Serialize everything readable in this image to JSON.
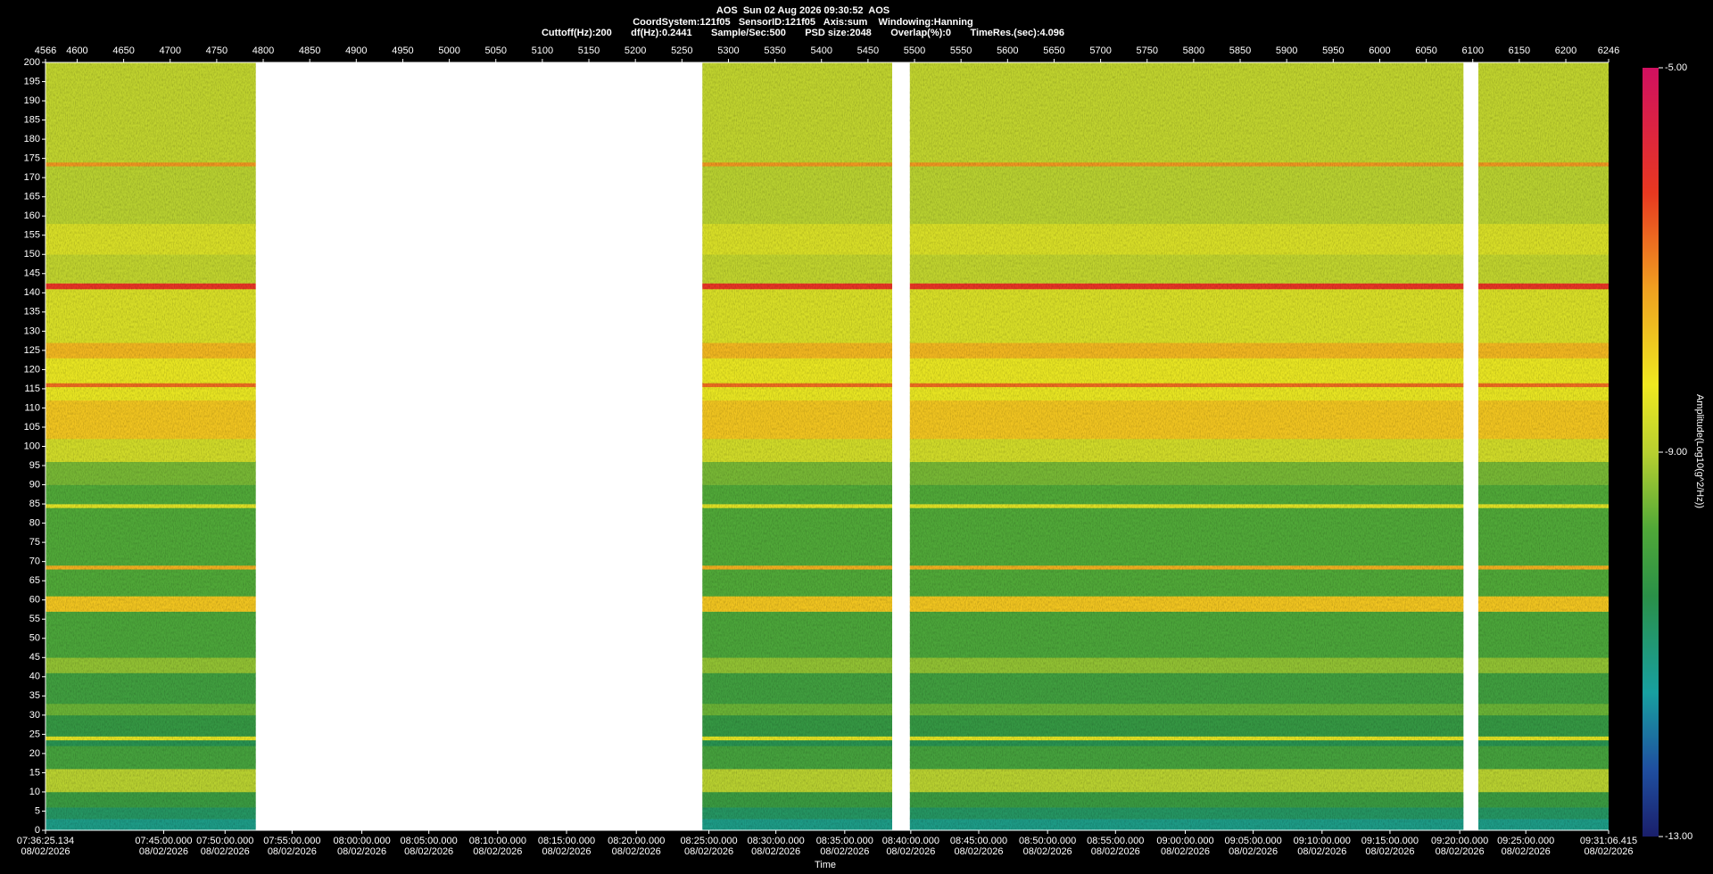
{
  "chart_data": {
    "type": "spectrogram",
    "title_lines": [
      "AOS  Sun 02 Aug 2026 09:30:52  AOS",
      "CoordSystem:121f05   SensorID:121f05   Axis:sum    Windowing:Hanning",
      "Cuttoff(Hz):200       df(Hz):0.2441       Sample/Sec:500       PSD size:2048       Overlap(%):0       TimeRes.(sec):4.096"
    ],
    "xlabel": "Time",
    "xlim": [
      4566,
      6246
    ],
    "xticks": [
      4566,
      4600,
      4650,
      4700,
      4750,
      4800,
      4850,
      4900,
      4950,
      5000,
      5050,
      5100,
      5150,
      5200,
      5250,
      5300,
      5350,
      5400,
      5450,
      5500,
      5550,
      5600,
      5650,
      5700,
      5750,
      5800,
      5850,
      5900,
      5950,
      6000,
      6050,
      6100,
      6150,
      6200,
      6246
    ],
    "time_ticks": [
      {
        "value": 4566,
        "label": "07:36:25.134"
      },
      {
        "value": 4693,
        "label": "07:45:00.000"
      },
      {
        "value": 4759,
        "label": "07:50:00.000"
      },
      {
        "value": 4831,
        "label": "07:55:00.000"
      },
      {
        "value": 4906,
        "label": "08:00:00.000"
      },
      {
        "value": 4978,
        "label": "08:05:00.000"
      },
      {
        "value": 5052,
        "label": "08:10:00.000"
      },
      {
        "value": 5126,
        "label": "08:15:00.000"
      },
      {
        "value": 5201,
        "label": "08:20:00.000"
      },
      {
        "value": 5279,
        "label": "08:25:00.000"
      },
      {
        "value": 5351,
        "label": "08:30:00.000"
      },
      {
        "value": 5425,
        "label": "08:35:00.000"
      },
      {
        "value": 5496,
        "label": "08:40:00.000"
      },
      {
        "value": 5569,
        "label": "08:45:00.000"
      },
      {
        "value": 5643,
        "label": "08:50:00.000"
      },
      {
        "value": 5716,
        "label": "08:55:00.000"
      },
      {
        "value": 5791,
        "label": "09:00:00.000"
      },
      {
        "value": 5864,
        "label": "09:05:00.000"
      },
      {
        "value": 5938,
        "label": "09:10:00.000"
      },
      {
        "value": 6011,
        "label": "09:15:00.000"
      },
      {
        "value": 6086,
        "label": "09:20:00.000"
      },
      {
        "value": 6157,
        "label": "09:25:00.000"
      },
      {
        "value": 6246,
        "label": "09:31:06.415"
      }
    ],
    "time_tick_dates": [
      "08/02/2026",
      "08/02/2026",
      "08/02/2026",
      "08/02/2026",
      "08/02/2026",
      "08/02/2026",
      "08/02/2026",
      "08/02/2026",
      "08/02/2026",
      "08/02/2026",
      "08/02/2026",
      "08/02/2026",
      "08/02/2026",
      "08/02/2026",
      "08/02/2026",
      "08/02/2026",
      "08/02/2026",
      "08/02/2026",
      "08/02/2026",
      "08/02/2026",
      "08/02/2026",
      "08/02/2026",
      "08/02/2026"
    ],
    "ylim": [
      0,
      200
    ],
    "yticks": [
      0,
      5,
      10,
      15,
      20,
      25,
      30,
      35,
      40,
      45,
      50,
      55,
      60,
      65,
      70,
      75,
      80,
      85,
      90,
      95,
      100,
      105,
      110,
      115,
      120,
      125,
      130,
      135,
      140,
      145,
      150,
      155,
      160,
      165,
      170,
      175,
      180,
      185,
      190,
      195,
      200
    ],
    "segments": [
      [
        4566,
        4792
      ],
      [
        5272,
        5476
      ],
      [
        5495,
        6090
      ],
      [
        6106,
        6246
      ]
    ],
    "band_edges": [
      0,
      3,
      6,
      10,
      16,
      22,
      23.5,
      24.5,
      30,
      33,
      41,
      45,
      57,
      61,
      68,
      69,
      84,
      85,
      90,
      96,
      102,
      112,
      115.5,
      116.5,
      123,
      127,
      141,
      142.5,
      150,
      158,
      173,
      174,
      200
    ],
    "band_amplitudes": [
      -11.2,
      -10.8,
      -10.2,
      -9.0,
      -10.0,
      -10.6,
      -8.5,
      -10.3,
      -9.6,
      -10.1,
      -9.3,
      -9.9,
      -7.8,
      -9.8,
      -7.5,
      -9.8,
      -8.5,
      -9.8,
      -9.5,
      -8.7,
      -7.8,
      -8.4,
      -6.8,
      -8.4,
      -7.6,
      -8.6,
      -6.2,
      -8.9,
      -8.6,
      -9.0,
      -7.2,
      -8.9
    ],
    "colorbar": {
      "label": "Amplitude(Log10(g^2/Hz))",
      "lim": [
        -13,
        -5
      ],
      "ticks": [
        {
          "value": -5,
          "label": "-5.00"
        },
        {
          "value": -9,
          "label": "-9.00"
        },
        {
          "value": -13,
          "label": "-13.00"
        }
      ],
      "colormap": [
        [
          -13,
          "#1a1f6b"
        ],
        [
          -12.3,
          "#1f4fa0"
        ],
        [
          -11.5,
          "#18a0a0"
        ],
        [
          -10.5,
          "#2a9048"
        ],
        [
          -9.8,
          "#50a838"
        ],
        [
          -9,
          "#b8d030"
        ],
        [
          -8.3,
          "#f0e820"
        ],
        [
          -7.3,
          "#f0a020"
        ],
        [
          -6.3,
          "#e83820"
        ],
        [
          -5,
          "#d01060"
        ]
      ]
    }
  }
}
